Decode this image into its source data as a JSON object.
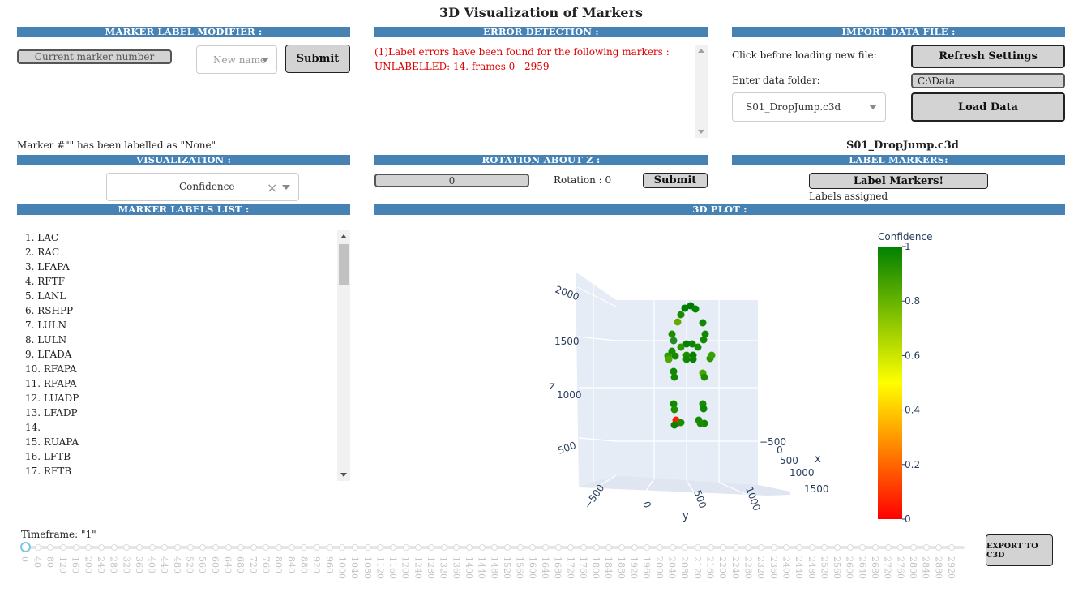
{
  "title": "3D Visualization of Markers",
  "sections": {
    "marker_label_modifier": "MARKER LABEL MODIFIER :",
    "error_detection": "ERROR DETECTION :",
    "import_data_file": "IMPORT DATA FILE :",
    "visualization": "VISUALIZATION :",
    "rotation_about_z": "ROTATION ABOUT Z :",
    "label_markers": "LABEL MARKERS:",
    "marker_labels_list": "MARKER LABELS LIST :",
    "plot_3d": "3D PLOT :"
  },
  "modifier": {
    "marker_number_placeholder": "Current marker number",
    "new_name_placeholder": "New name",
    "submit_label": "Submit",
    "status": "Marker #\"\" has been labelled as \"None\""
  },
  "errors": {
    "line1": "(1)Label errors have been found for the following markers :",
    "line2": "UNLABELLED: 14. frames 0 - 2959"
  },
  "import": {
    "click_before_text": "Click before loading new file:",
    "refresh_label": "Refresh Settings",
    "enter_folder_text": "Enter data folder:",
    "folder_value": "C:\\Data",
    "file_selected": "S01_DropJump.c3d",
    "load_label": "Load Data",
    "current_file": "S01_DropJump.c3d"
  },
  "visualization": {
    "selected": "Confidence",
    "clear_glyph": "×"
  },
  "rotation": {
    "input_value": "0",
    "rotation_text": "Rotation : 0",
    "submit_label": "Submit"
  },
  "label_markers": {
    "button_label": "Label Markers!",
    "status": "Labels assigned"
  },
  "marker_list": [
    "1. LAC",
    "2. RAC",
    "3. LFAPA",
    "4. RFTF",
    "5. LANL",
    "6. RSHPP",
    "7. LULN",
    "8. LULN",
    "9. LFADA",
    "10. RFAPA",
    "11. RFAPA",
    "12. LUADP",
    "13. LFADP",
    "14.",
    "15. RUAPA",
    "16. LFTB",
    "17. RFTB"
  ],
  "plot": {
    "colorbar_title": "Confidence",
    "colorbar_ticks": [
      "1",
      "0.8",
      "0.6",
      "0.4",
      "0.2",
      "0"
    ],
    "z_axis_label": "z",
    "z_ticks": [
      "2000",
      "1500",
      "1000",
      "500"
    ],
    "x_axis_label": "x",
    "x_ticks": [
      "−500",
      "0",
      "500",
      "1000",
      "1500"
    ],
    "y_axis_label": "y",
    "y_ticks": [
      "−500",
      "0",
      "500",
      "1000"
    ],
    "colors": {
      "high": "#008000",
      "mid": "#ffff00",
      "low": "#ff0000",
      "scene_bg": "#e5ecf6"
    }
  },
  "timeframe": {
    "label": "Timeframe: \"1\"",
    "ticks": [
      "0",
      "40",
      "80",
      "120",
      "160",
      "200",
      "240",
      "280",
      "320",
      "360",
      "400",
      "440",
      "480",
      "520",
      "560",
      "600",
      "640",
      "680",
      "720",
      "760",
      "800",
      "840",
      "880",
      "920",
      "960",
      "1000",
      "1040",
      "1080",
      "1120",
      "1160",
      "1200",
      "1240",
      "1280",
      "1320",
      "1360",
      "1400",
      "1440",
      "1480",
      "1520",
      "1560",
      "1600",
      "1640",
      "1680",
      "1720",
      "1760",
      "1800",
      "1840",
      "1880",
      "1920",
      "1960",
      "2000",
      "2040",
      "2080",
      "2120",
      "2160",
      "2200",
      "2240",
      "2280",
      "2320",
      "2360",
      "2400",
      "2440",
      "2480",
      "2520",
      "2560",
      "2600",
      "2640",
      "2680",
      "2720",
      "2760",
      "2800",
      "2840",
      "2880",
      "2920"
    ]
  },
  "export_label": "EXPORT TO C3D"
}
